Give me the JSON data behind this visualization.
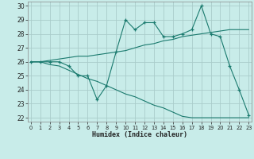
{
  "xlabel": "Humidex (Indice chaleur)",
  "background_color": "#c8ece9",
  "grid_color": "#aaccca",
  "line_color": "#1a7a6e",
  "x": [
    0,
    1,
    2,
    3,
    4,
    5,
    6,
    7,
    8,
    9,
    10,
    11,
    12,
    13,
    14,
    15,
    16,
    17,
    18,
    19,
    20,
    21,
    22,
    23
  ],
  "y_actual": [
    26,
    26,
    26,
    26,
    25.7,
    25,
    25,
    23.3,
    24.3,
    26.7,
    29,
    28.3,
    28.8,
    28.8,
    27.8,
    27.8,
    28,
    28.3,
    30,
    28,
    27.8,
    25.7,
    24,
    22.2
  ],
  "y_upper": [
    26,
    26,
    26.1,
    26.2,
    26.3,
    26.4,
    26.4,
    26.5,
    26.6,
    26.7,
    26.8,
    27.0,
    27.2,
    27.3,
    27.5,
    27.6,
    27.8,
    27.9,
    28.0,
    28.1,
    28.2,
    28.3,
    28.3,
    28.3
  ],
  "y_lower": [
    26,
    26,
    25.8,
    25.7,
    25.4,
    25.1,
    24.8,
    24.6,
    24.3,
    24.0,
    23.7,
    23.5,
    23.2,
    22.9,
    22.7,
    22.4,
    22.1,
    22.0,
    22.0,
    22.0,
    22.0,
    22.0,
    22.0,
    22.0
  ],
  "ylim": [
    22,
    30
  ],
  "xlim": [
    0,
    23
  ],
  "yticks": [
    22,
    23,
    24,
    25,
    26,
    27,
    28,
    29,
    30
  ],
  "xticks": [
    0,
    1,
    2,
    3,
    4,
    5,
    6,
    7,
    8,
    9,
    10,
    11,
    12,
    13,
    14,
    15,
    16,
    17,
    18,
    19,
    20,
    21,
    22,
    23
  ]
}
